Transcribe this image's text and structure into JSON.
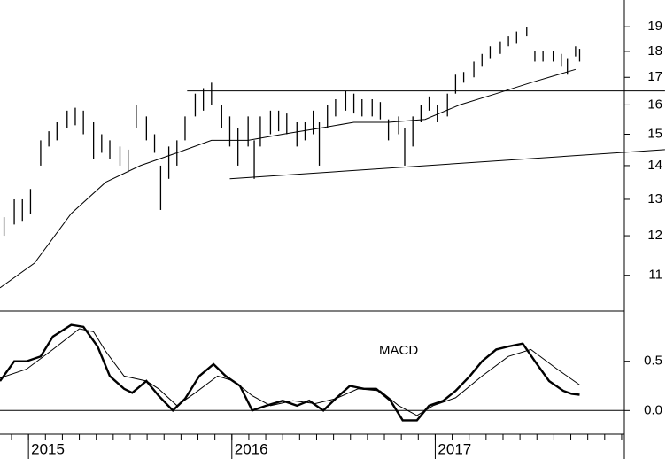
{
  "chart_data": [
    {
      "type": "range",
      "log": true,
      "color": "#000000",
      "xlim": [
        2014.86,
        2017.93
      ],
      "ylim": [
        10.17,
        20.15
      ],
      "yticks": [
        11,
        12,
        13,
        14,
        15,
        16,
        17,
        18,
        19
      ],
      "x": [
        2014.88,
        2014.93,
        2014.97,
        2015.01,
        2015.06,
        2015.1,
        2015.14,
        2015.19,
        2015.23,
        2015.27,
        2015.32,
        2015.36,
        2015.4,
        2015.45,
        2015.49,
        2015.53,
        2015.58,
        2015.62,
        2015.65,
        2015.69,
        2015.73,
        2015.77,
        2015.82,
        2015.86,
        2015.9,
        2015.95,
        2015.99,
        2016.03,
        2016.08,
        2016.11,
        2016.14,
        2016.19,
        2016.23,
        2016.27,
        2016.32,
        2016.36,
        2016.4,
        2016.43,
        2016.47,
        2016.51,
        2016.56,
        2016.6,
        2016.64,
        2016.69,
        2016.73,
        2016.77,
        2016.82,
        2016.85,
        2016.89,
        2016.93,
        2016.97,
        2017.01,
        2017.06,
        2017.1,
        2017.14,
        2017.19,
        2017.23,
        2017.27,
        2017.32,
        2017.36,
        2017.4,
        2017.45,
        2017.49,
        2017.53,
        2017.58,
        2017.62,
        2017.65,
        2017.69,
        2017.71
      ],
      "high": [
        12.5,
        13.0,
        13.0,
        13.3,
        14.8,
        15.1,
        15.4,
        15.8,
        15.9,
        15.8,
        15.4,
        15.0,
        14.8,
        14.6,
        14.5,
        16.0,
        15.6,
        15.0,
        14.0,
        14.6,
        14.8,
        15.6,
        16.4,
        16.6,
        16.8,
        16.0,
        15.6,
        15.2,
        15.6,
        14.8,
        15.6,
        15.8,
        15.8,
        15.7,
        15.4,
        15.4,
        15.8,
        15.4,
        16.0,
        16.2,
        16.5,
        16.4,
        16.2,
        16.2,
        16.1,
        15.5,
        15.6,
        15.2,
        15.6,
        16.0,
        16.3,
        16.0,
        16.4,
        17.1,
        17.2,
        17.6,
        17.9,
        18.2,
        18.4,
        18.6,
        18.8,
        19.0,
        18.0,
        18.0,
        18.0,
        17.9,
        17.7,
        18.2,
        18.1
      ],
      "low": [
        12.0,
        12.3,
        12.4,
        12.6,
        14.0,
        14.6,
        14.8,
        15.2,
        15.3,
        15.0,
        14.2,
        14.4,
        14.2,
        14.0,
        13.8,
        15.2,
        14.8,
        14.4,
        12.7,
        13.6,
        14.0,
        14.8,
        15.6,
        15.8,
        16.0,
        15.2,
        14.6,
        14.0,
        14.6,
        13.6,
        14.6,
        15.0,
        15.1,
        15.0,
        14.6,
        14.8,
        15.0,
        14.0,
        15.2,
        15.6,
        15.8,
        15.7,
        15.6,
        15.6,
        15.5,
        14.8,
        15.0,
        14.0,
        14.6,
        15.4,
        15.8,
        15.4,
        15.6,
        16.4,
        16.8,
        17.0,
        17.4,
        17.7,
        17.9,
        18.2,
        18.3,
        18.6,
        17.6,
        17.6,
        17.6,
        17.4,
        17.1,
        17.8,
        17.6
      ],
      "lines": [
        {
          "x": [
            2014.86,
            2015.03,
            2015.21,
            2015.38,
            2015.55,
            2015.73,
            2015.9,
            2016.08,
            2016.25,
            2016.43,
            2016.6,
            2016.77,
            2016.95,
            2017.12,
            2017.3,
            2017.47,
            2017.69
          ],
          "values": [
            10.7,
            11.3,
            12.6,
            13.5,
            14.0,
            14.4,
            14.8,
            14.8,
            15.0,
            15.2,
            15.4,
            15.4,
            15.5,
            16.0,
            16.4,
            16.8,
            17.3
          ]
        },
        {
          "x": [
            2015.78,
            2018.13
          ],
          "values": [
            16.5,
            16.5
          ]
        },
        {
          "x": [
            2015.99,
            2018.13
          ],
          "values": [
            13.6,
            14.5
          ]
        }
      ]
    },
    {
      "type": "line",
      "annotation": "MACD",
      "xlim": [
        2014.86,
        2017.93
      ],
      "ylim": [
        -0.24,
        1.01
      ],
      "yticks": [
        {
          "value": 0,
          "label": "0.0"
        },
        0.5
      ],
      "xticks": [
        2015,
        2016,
        2017
      ],
      "series": [
        {
          "color": "#000000",
          "x": [
            2014.86,
            2014.93,
            2014.99,
            2015.06,
            2015.12,
            2015.21,
            2015.27,
            2015.34,
            2015.4,
            2015.47,
            2015.51,
            2015.58,
            2015.64,
            2015.71,
            2015.77,
            2015.84,
            2015.91,
            2015.97,
            2016.04,
            2016.1,
            2016.17,
            2016.25,
            2016.32,
            2016.38,
            2016.45,
            2016.51,
            2016.58,
            2016.65,
            2016.71,
            2016.78,
            2016.84,
            2016.91,
            2016.97,
            2017.04,
            2017.1,
            2017.17,
            2017.23,
            2017.3,
            2017.36,
            2017.43,
            2017.49,
            2017.56,
            2017.63,
            2017.67,
            2017.71
          ],
          "values": [
            0.3,
            0.5,
            0.5,
            0.55,
            0.75,
            0.87,
            0.85,
            0.65,
            0.35,
            0.22,
            0.18,
            0.3,
            0.15,
            0.0,
            0.12,
            0.35,
            0.47,
            0.35,
            0.25,
            0.0,
            0.05,
            0.1,
            0.05,
            0.1,
            0.0,
            0.12,
            0.25,
            0.22,
            0.22,
            0.1,
            -0.1,
            -0.1,
            0.05,
            0.1,
            0.2,
            0.35,
            0.5,
            0.62,
            0.65,
            0.68,
            0.5,
            0.3,
            0.2,
            0.17,
            0.16
          ]
        },
        {
          "color": "#000000",
          "x": [
            2014.86,
            2014.99,
            2015.12,
            2015.25,
            2015.32,
            2015.38,
            2015.47,
            2015.58,
            2015.64,
            2015.73,
            2015.82,
            2015.93,
            2016.01,
            2016.1,
            2016.19,
            2016.3,
            2016.41,
            2016.51,
            2016.62,
            2016.73,
            2016.82,
            2016.91,
            2016.99,
            2017.1,
            2017.23,
            2017.36,
            2017.47,
            2017.6,
            2017.71
          ],
          "values": [
            0.33,
            0.42,
            0.62,
            0.83,
            0.8,
            0.6,
            0.35,
            0.3,
            0.22,
            0.05,
            0.18,
            0.35,
            0.3,
            0.15,
            0.05,
            0.1,
            0.07,
            0.12,
            0.22,
            0.2,
            0.05,
            -0.05,
            0.05,
            0.13,
            0.35,
            0.55,
            0.62,
            0.42,
            0.26
          ]
        }
      ]
    }
  ]
}
